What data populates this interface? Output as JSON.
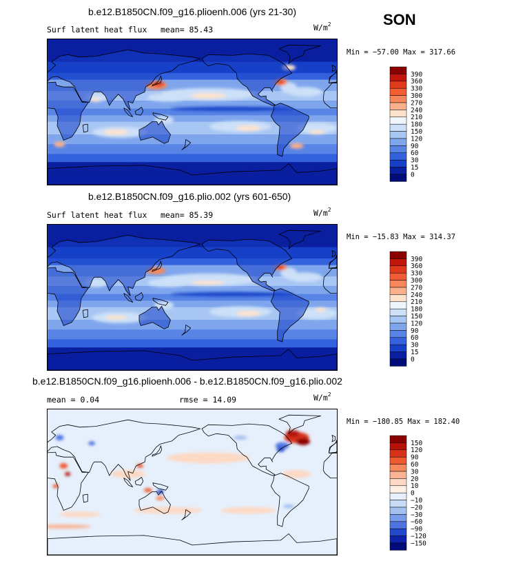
{
  "season": "SON",
  "units_base": "W/m",
  "units_exp": "2",
  "panels": [
    {
      "title": "b.e12.B1850CN.f09_g16.plioenh.006 (yrs 21-30)",
      "variable": "Surf latent heat flux",
      "stat1": "mean=  85.43",
      "stat2": "",
      "minmax": "Min = −57.00 Max = 317.66",
      "levels": [
        "390",
        "360",
        "330",
        "300",
        "270",
        "240",
        "210",
        "180",
        "150",
        "120",
        "90",
        "60",
        "30",
        "15",
        "0"
      ],
      "colors": [
        "#8b0000",
        "#c0160b",
        "#e03a1c",
        "#f25d34",
        "#f7865a",
        "#fbb08c",
        "#fde3cc",
        "#eef5fd",
        "#cce0f8",
        "#a8c6f3",
        "#7fa6ed",
        "#5884e6",
        "#3462de",
        "#1640c8",
        "#0a1ea0",
        "#000c78"
      ]
    },
    {
      "title": "b.e12.B1850CN.f09_g16.plio.002 (yrs 601-650)",
      "variable": "Surf latent heat flux",
      "stat1": "mean=  85.39",
      "stat2": "",
      "minmax": "Min = −15.83 Max = 314.37",
      "levels": [
        "390",
        "360",
        "330",
        "300",
        "270",
        "240",
        "210",
        "180",
        "150",
        "120",
        "90",
        "60",
        "30",
        "15",
        "0"
      ],
      "colors": [
        "#8b0000",
        "#c0160b",
        "#e03a1c",
        "#f25d34",
        "#f7865a",
        "#fbb08c",
        "#fde3cc",
        "#eef5fd",
        "#cce0f8",
        "#a8c6f3",
        "#7fa6ed",
        "#5884e6",
        "#3462de",
        "#1640c8",
        "#0a1ea0",
        "#000c78"
      ]
    },
    {
      "title": "b.e12.B1850CN.f09_g16.plioenh.006 - b.e12.B1850CN.f09_g16.plio.002",
      "variable": "mean =   0.04",
      "stat1": "rmse =  14.09",
      "stat2": "",
      "minmax": "Min = −180.85 Max = 182.40",
      "levels": [
        "150",
        "120",
        "90",
        "60",
        "30",
        "20",
        "10",
        "0",
        "−10",
        "−20",
        "−30",
        "−60",
        "−90",
        "−120",
        "−150"
      ],
      "colors": [
        "#8b0000",
        "#b51208",
        "#d8331a",
        "#ee5a30",
        "#f78a5c",
        "#fab394",
        "#fdd9c4",
        "#fff0e6",
        "#e6f0fc",
        "#c7dcf7",
        "#a3c0f1",
        "#7a9aea",
        "#4f74e0",
        "#2448cc",
        "#0c22a8",
        "#000c78"
      ]
    }
  ]
}
